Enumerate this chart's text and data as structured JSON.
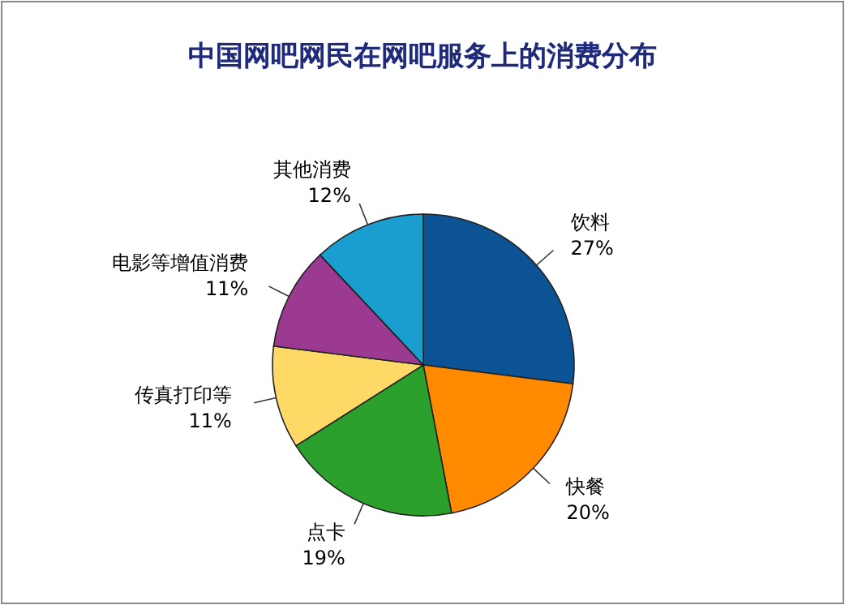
{
  "chart_data": {
    "type": "pie",
    "title": "中国网吧网民在网吧服务上的消费分布",
    "categories": [
      "饮料",
      "快餐",
      "点卡",
      "传真打印等",
      "电影等增值消费",
      "其他消费"
    ],
    "values": [
      27,
      20,
      19,
      11,
      11,
      12
    ],
    "value_labels": [
      "27%",
      "20%",
      "19%",
      "11%",
      "11%",
      "12%"
    ],
    "colors": [
      "#0b5394",
      "#ff8a00",
      "#2ca02c",
      "#ffd966",
      "#9b3a90",
      "#1a9ecf"
    ]
  }
}
